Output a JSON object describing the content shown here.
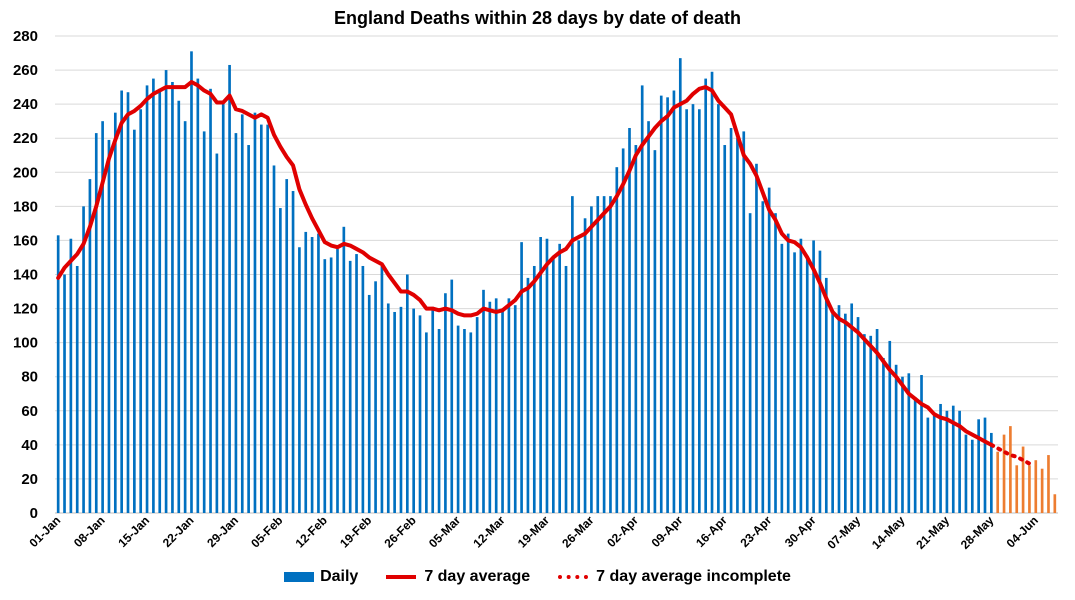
{
  "chart_data": {
    "type": "bar",
    "title": "England Deaths within 28 days by date of death",
    "xlabel": "",
    "ylabel": "",
    "ylim": [
      0,
      280
    ],
    "y_ticks": [
      0,
      20,
      40,
      60,
      80,
      100,
      120,
      140,
      160,
      180,
      200,
      220,
      240,
      260,
      280
    ],
    "x_tick_labels": [
      "01-Jan",
      "08-Jan",
      "15-Jan",
      "22-Jan",
      "29-Jan",
      "05-Feb",
      "12-Feb",
      "19-Feb",
      "26-Feb",
      "05-Mar",
      "12-Mar",
      "19-Mar",
      "26-Mar",
      "02-Apr",
      "09-Apr",
      "16-Apr",
      "23-Apr",
      "30-Apr",
      "07-May",
      "14-May",
      "21-May",
      "28-May",
      "04-Jun"
    ],
    "complete_days": 148,
    "daily": [
      163,
      140,
      161,
      145,
      180,
      196,
      223,
      230,
      219,
      235,
      248,
      247,
      225,
      237,
      251,
      255,
      249,
      260,
      253,
      242,
      230,
      271,
      255,
      224,
      249,
      211,
      240,
      263,
      223,
      234,
      216,
      235,
      228,
      228,
      204,
      179,
      196,
      189,
      156,
      165,
      162,
      164,
      149,
      150,
      155,
      168,
      148,
      152,
      145,
      128,
      136,
      145,
      123,
      118,
      121,
      140,
      120,
      116,
      106,
      121,
      108,
      129,
      137,
      110,
      108,
      106,
      115,
      131,
      124,
      126,
      120,
      126,
      122,
      159,
      138,
      145,
      162,
      161,
      150,
      158,
      145,
      186,
      160,
      173,
      180,
      186,
      186,
      186,
      203,
      214,
      226,
      216,
      251,
      230,
      213,
      245,
      244,
      248,
      267,
      237,
      240,
      237,
      255,
      259,
      240,
      216,
      226,
      220,
      224,
      176,
      205,
      183,
      191,
      176,
      158,
      164,
      153,
      161,
      151,
      160,
      154,
      138,
      119,
      122,
      117,
      123,
      115,
      105,
      104,
      108,
      91,
      101,
      87,
      80,
      82,
      68,
      81,
      56,
      57,
      64,
      60,
      63,
      60,
      46,
      43,
      55,
      56,
      47,
      36,
      46,
      51,
      28,
      39,
      28,
      31,
      26,
      34,
      11
    ],
    "avg7": [
      138,
      144,
      148,
      152,
      158,
      168,
      180,
      194,
      208,
      219,
      229,
      234,
      236,
      239,
      243,
      246,
      248,
      250,
      250,
      250,
      250,
      253,
      251,
      248,
      246,
      241,
      241,
      245,
      237,
      236,
      234,
      232,
      234,
      232,
      222,
      215,
      209,
      204,
      190,
      181,
      173,
      166,
      159,
      157,
      156,
      158,
      157,
      155,
      153,
      150,
      148,
      146,
      140,
      135,
      130,
      130,
      128,
      125,
      120,
      120,
      119,
      120,
      119,
      117,
      116,
      116,
      117,
      120,
      119,
      118,
      119,
      122,
      125,
      130,
      132,
      136,
      141,
      146,
      150,
      153,
      155,
      160,
      162,
      164,
      168,
      172,
      176,
      180,
      186,
      193,
      201,
      210,
      216,
      221,
      226,
      230,
      233,
      238,
      240,
      242,
      246,
      249,
      250,
      248,
      242,
      238,
      234,
      222,
      210,
      205,
      198,
      188,
      178,
      172,
      164,
      160,
      159,
      156,
      150,
      143,
      135,
      126,
      118,
      114,
      112,
      109,
      106,
      102,
      98,
      94,
      89,
      84,
      80,
      75,
      70,
      67,
      64,
      62,
      58,
      56,
      55,
      53,
      51,
      48,
      46,
      44,
      42,
      40,
      38,
      36,
      34,
      33,
      31,
      29
    ],
    "series": [
      {
        "name": "Daily",
        "color": "#0070c0",
        "incomplete_color": "#ed7d31"
      },
      {
        "name": "7 day average",
        "color": "#e00000"
      },
      {
        "name": "7 day average incomplete",
        "color": "#e00000"
      }
    ]
  }
}
